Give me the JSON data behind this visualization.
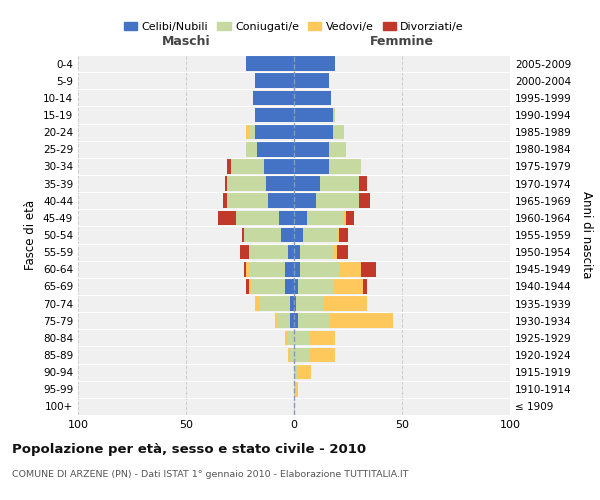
{
  "age_groups": [
    "100+",
    "95-99",
    "90-94",
    "85-89",
    "80-84",
    "75-79",
    "70-74",
    "65-69",
    "60-64",
    "55-59",
    "50-54",
    "45-49",
    "40-44",
    "35-39",
    "30-34",
    "25-29",
    "20-24",
    "15-19",
    "10-14",
    "5-9",
    "0-4"
  ],
  "birth_years": [
    "≤ 1909",
    "1910-1914",
    "1915-1919",
    "1920-1924",
    "1925-1929",
    "1930-1934",
    "1935-1939",
    "1940-1944",
    "1945-1949",
    "1950-1954",
    "1955-1959",
    "1960-1964",
    "1965-1969",
    "1970-1974",
    "1975-1979",
    "1980-1984",
    "1985-1989",
    "1990-1994",
    "1995-1999",
    "2000-2004",
    "2005-2009"
  ],
  "colors": {
    "celibe": "#4472c4",
    "coniugato": "#c5d9a0",
    "vedovo": "#ffc85c",
    "divorziato": "#c0392b"
  },
  "maschi": {
    "celibe": [
      0,
      0,
      0,
      0,
      0,
      2,
      2,
      4,
      4,
      3,
      6,
      7,
      12,
      13,
      14,
      17,
      18,
      18,
      19,
      18,
      22
    ],
    "coniugato": [
      0,
      0,
      0,
      2,
      3,
      6,
      14,
      16,
      17,
      18,
      17,
      20,
      19,
      18,
      15,
      5,
      3,
      0,
      0,
      0,
      0
    ],
    "vedovo": [
      0,
      0,
      0,
      1,
      1,
      1,
      2,
      1,
      1,
      0,
      0,
      0,
      0,
      0,
      0,
      0,
      1,
      0,
      0,
      0,
      0
    ],
    "divorziato": [
      0,
      0,
      0,
      0,
      0,
      0,
      0,
      1,
      1,
      4,
      1,
      8,
      2,
      1,
      2,
      0,
      0,
      0,
      0,
      0,
      0
    ]
  },
  "femmine": {
    "nubile": [
      0,
      0,
      0,
      0,
      0,
      2,
      1,
      2,
      3,
      3,
      4,
      6,
      10,
      12,
      16,
      16,
      18,
      18,
      17,
      16,
      19
    ],
    "coniugata": [
      0,
      1,
      2,
      7,
      7,
      14,
      13,
      16,
      18,
      15,
      16,
      17,
      20,
      18,
      15,
      8,
      5,
      1,
      0,
      0,
      0
    ],
    "vedova": [
      0,
      1,
      6,
      12,
      12,
      30,
      20,
      14,
      10,
      2,
      1,
      1,
      0,
      0,
      0,
      0,
      0,
      0,
      0,
      0,
      0
    ],
    "divorziata": [
      0,
      0,
      0,
      0,
      0,
      0,
      0,
      2,
      7,
      5,
      4,
      4,
      5,
      4,
      0,
      0,
      0,
      0,
      0,
      0,
      0
    ]
  },
  "title": "Popolazione per età, sesso e stato civile - 2010",
  "subtitle": "COMUNE DI ARZENE (PN) - Dati ISTAT 1° gennaio 2010 - Elaborazione TUTTITALIA.IT",
  "xlabel_maschi": "Maschi",
  "xlabel_femmine": "Femmine",
  "ylabel_left": "Fasce di età",
  "ylabel_right": "Anni di nascita",
  "xlim": 100,
  "background_color": "#ffffff",
  "grid_color": "#cccccc",
  "legend_labels": [
    "Celibi/Nubili",
    "Coniugati/e",
    "Vedovi/e",
    "Divorziati/e"
  ]
}
